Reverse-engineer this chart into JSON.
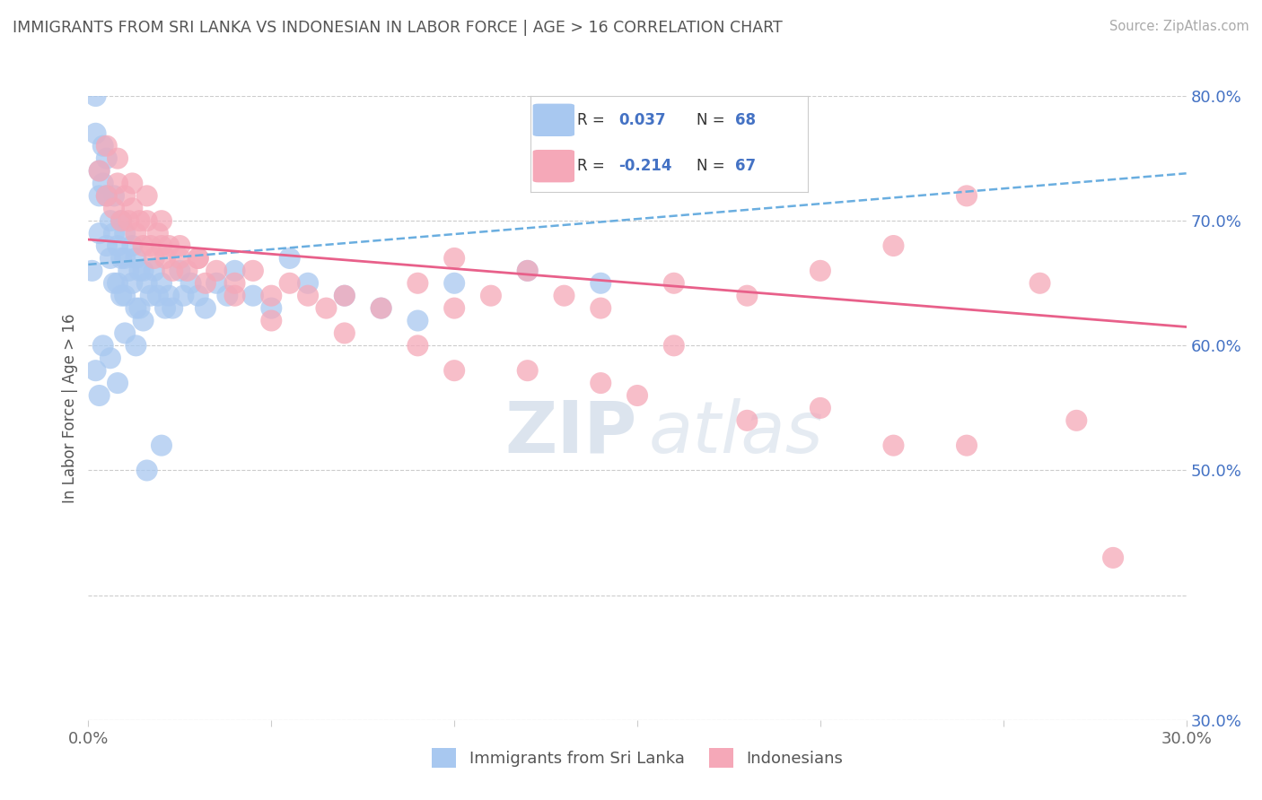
{
  "title": "IMMIGRANTS FROM SRI LANKA VS INDONESIAN IN LABOR FORCE | AGE > 16 CORRELATION CHART",
  "source": "Source: ZipAtlas.com",
  "ylabel": "In Labor Force | Age > 16",
  "xlim": [
    0.0,
    0.3
  ],
  "ylim": [
    0.3,
    0.8
  ],
  "xticks": [
    0.0,
    0.05,
    0.1,
    0.15,
    0.2,
    0.25,
    0.3
  ],
  "yticks": [
    0.3,
    0.4,
    0.5,
    0.6,
    0.7,
    0.8
  ],
  "sri_lanka_color": "#a8c8f0",
  "indonesian_color": "#f5a8b8",
  "sri_lanka_line_color": "#6aaee0",
  "indonesian_line_color": "#e8608a",
  "R_sri": 0.037,
  "N_sri": 68,
  "R_indo": -0.214,
  "N_indo": 67,
  "legend_label_sri": "Immigrants from Sri Lanka",
  "legend_label_indo": "Indonesians",
  "watermark_zip": "ZIP",
  "watermark_atlas": "atlas",
  "background_color": "#ffffff",
  "grid_color": "#cccccc",
  "title_color": "#555555",
  "axis_color": "#4472c4",
  "sri_lanka_x": [
    0.001,
    0.002,
    0.002,
    0.003,
    0.003,
    0.003,
    0.004,
    0.004,
    0.005,
    0.005,
    0.005,
    0.006,
    0.006,
    0.007,
    0.007,
    0.007,
    0.008,
    0.008,
    0.009,
    0.009,
    0.009,
    0.01,
    0.01,
    0.01,
    0.011,
    0.012,
    0.012,
    0.013,
    0.013,
    0.014,
    0.014,
    0.015,
    0.015,
    0.016,
    0.017,
    0.018,
    0.019,
    0.02,
    0.021,
    0.022,
    0.023,
    0.025,
    0.026,
    0.028,
    0.03,
    0.032,
    0.035,
    0.038,
    0.04,
    0.045,
    0.05,
    0.055,
    0.06,
    0.07,
    0.08,
    0.09,
    0.1,
    0.12,
    0.14,
    0.002,
    0.003,
    0.004,
    0.006,
    0.008,
    0.01,
    0.013,
    0.016,
    0.02
  ],
  "sri_lanka_y": [
    0.66,
    0.8,
    0.77,
    0.74,
    0.72,
    0.69,
    0.76,
    0.73,
    0.75,
    0.72,
    0.68,
    0.7,
    0.67,
    0.72,
    0.69,
    0.65,
    0.68,
    0.65,
    0.7,
    0.67,
    0.64,
    0.69,
    0.67,
    0.64,
    0.66,
    0.68,
    0.65,
    0.67,
    0.63,
    0.66,
    0.63,
    0.66,
    0.62,
    0.65,
    0.64,
    0.66,
    0.64,
    0.65,
    0.63,
    0.64,
    0.63,
    0.66,
    0.64,
    0.65,
    0.64,
    0.63,
    0.65,
    0.64,
    0.66,
    0.64,
    0.63,
    0.67,
    0.65,
    0.64,
    0.63,
    0.62,
    0.65,
    0.66,
    0.65,
    0.58,
    0.56,
    0.6,
    0.59,
    0.57,
    0.61,
    0.6,
    0.5,
    0.52
  ],
  "indonesian_x": [
    0.003,
    0.005,
    0.007,
    0.008,
    0.009,
    0.01,
    0.011,
    0.012,
    0.013,
    0.014,
    0.015,
    0.016,
    0.017,
    0.018,
    0.019,
    0.02,
    0.021,
    0.022,
    0.023,
    0.025,
    0.027,
    0.03,
    0.032,
    0.035,
    0.04,
    0.045,
    0.05,
    0.055,
    0.06,
    0.065,
    0.07,
    0.08,
    0.09,
    0.1,
    0.11,
    0.12,
    0.13,
    0.14,
    0.16,
    0.18,
    0.2,
    0.22,
    0.24,
    0.26,
    0.28,
    0.005,
    0.008,
    0.012,
    0.016,
    0.02,
    0.025,
    0.03,
    0.04,
    0.05,
    0.07,
    0.09,
    0.12,
    0.15,
    0.18,
    0.22,
    0.1,
    0.14,
    0.16,
    0.2,
    0.24,
    0.27,
    0.1
  ],
  "indonesian_y": [
    0.74,
    0.72,
    0.71,
    0.73,
    0.7,
    0.72,
    0.7,
    0.71,
    0.69,
    0.7,
    0.68,
    0.7,
    0.68,
    0.67,
    0.69,
    0.68,
    0.67,
    0.68,
    0.66,
    0.67,
    0.66,
    0.67,
    0.65,
    0.66,
    0.64,
    0.66,
    0.64,
    0.65,
    0.64,
    0.63,
    0.64,
    0.63,
    0.65,
    0.67,
    0.64,
    0.66,
    0.64,
    0.63,
    0.65,
    0.64,
    0.66,
    0.68,
    0.72,
    0.65,
    0.43,
    0.76,
    0.75,
    0.73,
    0.72,
    0.7,
    0.68,
    0.67,
    0.65,
    0.62,
    0.61,
    0.6,
    0.58,
    0.56,
    0.54,
    0.52,
    0.58,
    0.57,
    0.6,
    0.55,
    0.52,
    0.54,
    0.63
  ]
}
